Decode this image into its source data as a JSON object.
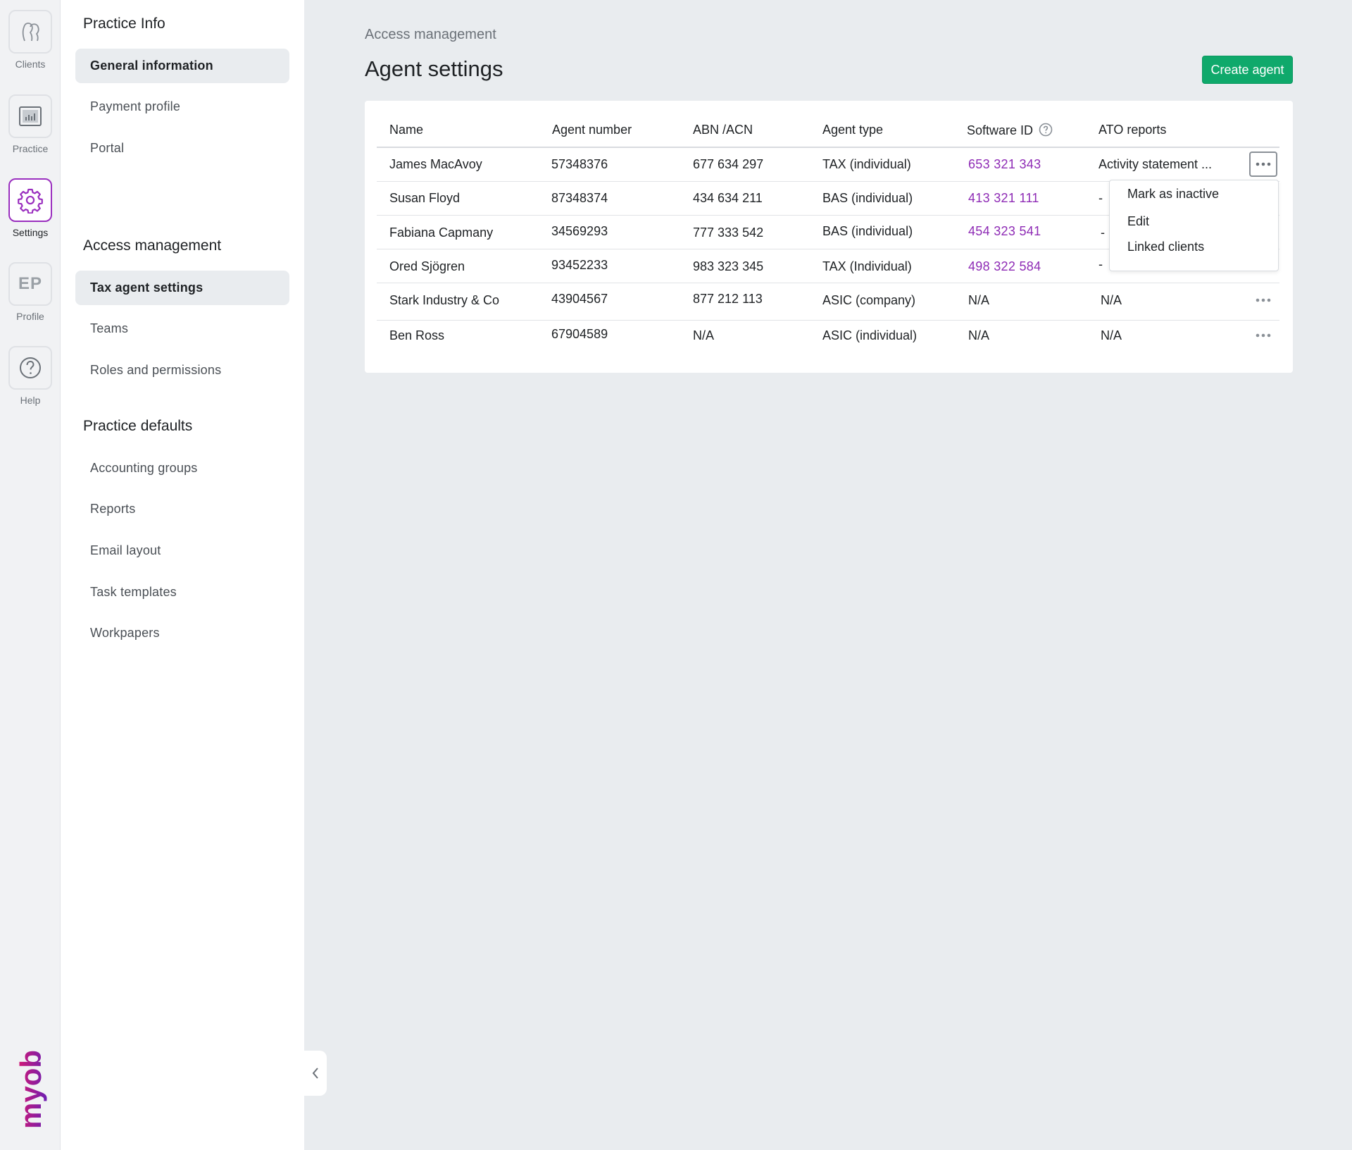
{
  "rail": {
    "clients_label": "Clients",
    "practice_label": "Practice",
    "settings_label": "Settings",
    "profile_initials": "EP",
    "profile_label": "Profile",
    "help_label": "Help",
    "brand_text": "myob",
    "accent_color": "#9a2fbf"
  },
  "sidenav": {
    "practice_info": {
      "title": "Practice Info",
      "items": [
        "General information",
        "Payment profile",
        "Portal"
      ]
    },
    "access_management": {
      "title": "Access management",
      "items": [
        "Tax agent settings",
        "Teams",
        "Roles and permissions"
      ]
    },
    "practice_defaults": {
      "title": "Practice defaults",
      "items": [
        "Accounting groups",
        "Reports",
        "Email layout",
        "Task templates",
        "Workpapers"
      ]
    }
  },
  "main": {
    "breadcrumb": "Access management",
    "title": "Agent settings",
    "create_button": "Create agent",
    "create_button_color": "#0fa96b"
  },
  "table": {
    "columns": [
      "Name",
      "Agent number",
      "ABN /ACN",
      "Agent type",
      "Software ID",
      "ATO reports"
    ],
    "rows": [
      {
        "name": "James MacAvoy",
        "agent_number": "57348376",
        "abn": "677 634 297",
        "type": "TAX (individual)",
        "software_id": "653 321 343",
        "ato": "Activity statement ..."
      },
      {
        "name": "Susan Floyd",
        "agent_number": "87348374",
        "abn": "434 634 211",
        "type": "BAS (individual)",
        "software_id": "413 321 111",
        "ato": "-"
      },
      {
        "name": "Fabiana Capmany",
        "agent_number": "34569293",
        "abn": "777 333 542",
        "type": "BAS (individual)",
        "software_id": "454 323 541",
        "ato": "-"
      },
      {
        "name": "Ored Sjögren",
        "agent_number": "93452233",
        "abn": "983 323 345",
        "type": "TAX (Individual)",
        "software_id": "498 322 584",
        "ato": "-"
      },
      {
        "name": "Stark Industry & Co",
        "agent_number": "43904567",
        "abn": "877 212 113",
        "type": "ASIC (company)",
        "software_id": "N/A",
        "ato": "N/A"
      },
      {
        "name": "Ben Ross",
        "agent_number": "67904589",
        "abn": "N/A",
        "type": "ASIC (individual)",
        "software_id": "N/A",
        "ato": "N/A"
      }
    ],
    "link_color": "#8e2bb5"
  },
  "row_menu": {
    "items": [
      "Mark as inactive",
      "Edit",
      "Linked clients"
    ]
  }
}
